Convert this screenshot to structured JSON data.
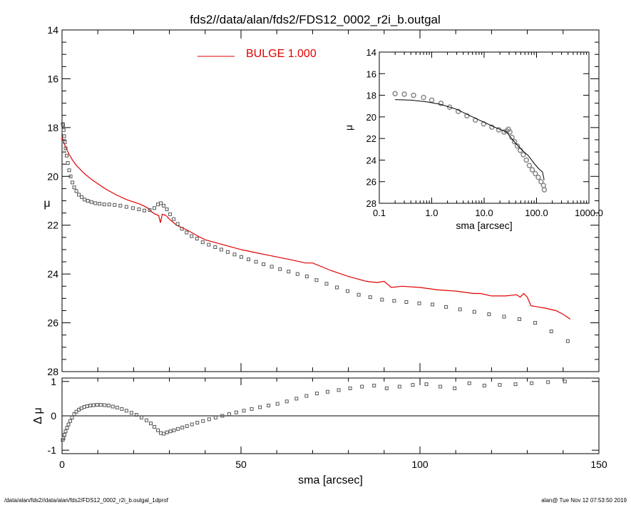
{
  "title": "fds2//data/alan/fds2/FDS12_0002_r2i_b.outgal",
  "legend": {
    "label": "BULGE  1.000",
    "color": "#e00000"
  },
  "footer": {
    "left": "/data/alan/fds2//data/alan/fds2/FDS12_0002_r2i_b.outgal_1dprof",
    "right": "alan@  Tue Nov 12 07:53:50 2019"
  },
  "colors": {
    "model": "#e00000",
    "data": "#555555",
    "inset_model": "#000000",
    "axes": "#000000"
  },
  "chart_data": [
    {
      "type": "scatter",
      "panel": "main",
      "xlabel": "",
      "ylabel": "μ",
      "xlim": [
        0,
        150
      ],
      "ylim": [
        28,
        14
      ],
      "y_inverted": true,
      "y_ticks": [
        "14",
        "16",
        "18",
        "20",
        "22",
        "24",
        "26",
        "28"
      ],
      "series": [
        {
          "name": "BULGE  1.000",
          "kind": "line",
          "x": [
            0,
            1,
            2,
            3,
            4,
            5,
            6,
            8,
            10,
            12,
            15,
            18,
            20,
            22,
            24,
            25,
            26,
            27,
            27.5,
            28,
            29,
            30,
            32,
            35,
            38,
            40,
            45,
            50,
            55,
            60,
            65,
            68,
            70,
            75,
            80,
            85,
            88,
            90,
            92,
            95,
            100,
            105,
            110,
            115,
            117,
            120,
            124,
            127,
            128,
            129,
            130,
            131,
            133,
            135,
            138,
            140,
            142
          ],
          "y": [
            18.4,
            18.8,
            19.1,
            19.35,
            19.55,
            19.7,
            19.85,
            20.1,
            20.3,
            20.5,
            20.75,
            20.95,
            21.05,
            21.15,
            21.3,
            21.45,
            21.55,
            21.6,
            21.9,
            21.55,
            21.6,
            21.75,
            22.0,
            22.2,
            22.45,
            22.6,
            22.8,
            23.0,
            23.15,
            23.3,
            23.45,
            23.55,
            23.55,
            23.85,
            24.1,
            24.3,
            24.35,
            24.3,
            24.55,
            24.5,
            24.55,
            24.65,
            24.7,
            24.8,
            24.8,
            24.9,
            24.9,
            24.85,
            24.95,
            24.8,
            24.95,
            25.3,
            25.35,
            25.4,
            25.5,
            25.65,
            25.85
          ]
        },
        {
          "name": "",
          "kind": "markers",
          "x": [
            0.2,
            0.3,
            0.45,
            0.6,
            0.8,
            1.0,
            1.3,
            1.6,
            2.0,
            2.4,
            2.9,
            3.4,
            4.0,
            4.7,
            5.5,
            6.3,
            7.2,
            8.2,
            9.3,
            10.5,
            11.8,
            13.2,
            14.7,
            16.3,
            18.0,
            19.8,
            21.5,
            23.0,
            24.5,
            25.8,
            26.8,
            27.6,
            28.4,
            29.3,
            30.2,
            31.2,
            32.3,
            33.5,
            34.8,
            36.2,
            37.7,
            39.3,
            41.0,
            42.8,
            44.5,
            46.3,
            48.2,
            50.1,
            52.1,
            54.2,
            56.3,
            58.6,
            60.9,
            63.3,
            65.8,
            68.4,
            71.1,
            73.9,
            76.8,
            79.8,
            82.9,
            86.1,
            89.4,
            92.8,
            96.2,
            99.8,
            103.5,
            107.3,
            111.2,
            115.2,
            119.3,
            123.5,
            127.8,
            132.2,
            136.7,
            141.3
          ],
          "y": [
            17.85,
            17.9,
            18.1,
            18.35,
            18.6,
            18.85,
            19.15,
            19.45,
            19.75,
            20.0,
            20.25,
            20.45,
            20.6,
            20.75,
            20.85,
            20.95,
            21.0,
            21.05,
            21.1,
            21.12,
            21.15,
            21.15,
            21.17,
            21.2,
            21.25,
            21.3,
            21.35,
            21.4,
            21.38,
            21.3,
            21.15,
            21.1,
            21.2,
            21.35,
            21.55,
            21.75,
            21.95,
            22.15,
            22.3,
            22.45,
            22.55,
            22.7,
            22.8,
            22.9,
            23.0,
            23.1,
            23.2,
            23.3,
            23.4,
            23.5,
            23.6,
            23.7,
            23.8,
            23.9,
            24.0,
            24.1,
            24.25,
            24.4,
            24.55,
            24.7,
            24.85,
            24.95,
            25.05,
            25.1,
            25.15,
            25.2,
            25.25,
            25.35,
            25.45,
            25.55,
            25.65,
            25.75,
            25.85,
            26.0,
            26.35,
            26.75
          ]
        }
      ]
    },
    {
      "type": "scatter",
      "panel": "residual",
      "xlabel": "sma [arcsec]",
      "ylabel": "Δ μ",
      "xlim": [
        0,
        150
      ],
      "ylim": [
        -1.1,
        1.1
      ],
      "x_ticks": [
        "0",
        "50",
        "100",
        "150"
      ],
      "y_ticks": [
        "1",
        "0",
        "-1"
      ],
      "zero_line": true,
      "series": [
        {
          "name": "",
          "kind": "markers",
          "x": [
            0.2,
            0.4,
            0.7,
            1.0,
            1.4,
            1.8,
            2.3,
            2.8,
            3.4,
            4.0,
            4.7,
            5.4,
            6.2,
            7.0,
            7.9,
            8.8,
            9.8,
            10.8,
            11.9,
            13.0,
            14.2,
            15.4,
            16.7,
            18.0,
            19.4,
            20.8,
            22.2,
            23.6,
            24.8,
            25.8,
            26.8,
            27.6,
            28.4,
            29.3,
            30.3,
            31.3,
            32.4,
            33.6,
            34.9,
            36.3,
            37.8,
            39.4,
            41.1,
            42.9,
            44.8,
            46.7,
            48.7,
            50.8,
            53.0,
            55.3,
            57.7,
            60.2,
            62.8,
            65.5,
            68.3,
            71.2,
            74.2,
            77.3,
            80.5,
            83.8,
            87.2,
            90.7,
            94.3,
            98.0,
            101.8,
            105.7,
            109.7,
            113.8,
            118.0,
            122.3,
            126.7,
            131.2,
            135.8,
            140.5
          ],
          "y": [
            -0.7,
            -0.65,
            -0.55,
            -0.45,
            -0.35,
            -0.25,
            -0.15,
            -0.05,
            0.05,
            0.12,
            0.18,
            0.22,
            0.26,
            0.28,
            0.3,
            0.31,
            0.32,
            0.32,
            0.31,
            0.3,
            0.27,
            0.24,
            0.2,
            0.15,
            0.09,
            0.03,
            -0.05,
            -0.13,
            -0.22,
            -0.32,
            -0.42,
            -0.5,
            -0.52,
            -0.48,
            -0.45,
            -0.42,
            -0.38,
            -0.34,
            -0.3,
            -0.25,
            -0.2,
            -0.15,
            -0.1,
            -0.05,
            0.0,
            0.05,
            0.1,
            0.15,
            0.2,
            0.25,
            0.3,
            0.35,
            0.42,
            0.5,
            0.58,
            0.65,
            0.7,
            0.75,
            0.8,
            0.85,
            0.88,
            0.8,
            0.85,
            0.9,
            0.92,
            0.85,
            0.8,
            0.95,
            0.88,
            0.9,
            0.92,
            0.95,
            0.98,
            1.0
          ]
        }
      ]
    },
    {
      "type": "scatter",
      "panel": "inset",
      "xlabel": "sma [arcsec]",
      "ylabel": "μ",
      "x_scale": "log",
      "xlim": [
        0.1,
        1000
      ],
      "ylim": [
        28,
        14
      ],
      "y_inverted": true,
      "x_ticks": [
        "0.1",
        "1.0",
        "10.0",
        "100.0",
        "1000.0"
      ],
      "y_ticks": [
        "14",
        "16",
        "18",
        "20",
        "22",
        "24",
        "26",
        "28"
      ],
      "series": [
        {
          "name": "",
          "kind": "line",
          "x": [
            0.2,
            0.4,
            0.8,
            1.5,
            3,
            6,
            10,
            15,
            20,
            27,
            32,
            40,
            55,
            70,
            90,
            110,
            130,
            140
          ],
          "y": [
            18.4,
            18.45,
            18.6,
            18.85,
            19.3,
            20.0,
            20.5,
            20.9,
            21.15,
            21.4,
            21.9,
            22.45,
            23.15,
            23.6,
            24.3,
            24.8,
            25.1,
            25.85
          ]
        },
        {
          "name": "",
          "kind": "markers",
          "x": [
            0.2,
            0.3,
            0.45,
            0.7,
            1.0,
            1.5,
            2.2,
            3.2,
            4.7,
            6.8,
            9.8,
            14,
            19,
            24,
            27,
            29,
            31,
            34,
            38,
            43,
            49,
            56,
            64,
            73,
            83,
            95,
            108,
            122,
            136,
            141
          ],
          "y": [
            17.85,
            17.9,
            18.0,
            18.2,
            18.45,
            18.75,
            19.1,
            19.5,
            19.9,
            20.3,
            20.65,
            20.95,
            21.2,
            21.4,
            21.3,
            21.15,
            21.4,
            21.9,
            22.3,
            22.7,
            23.1,
            23.5,
            24.0,
            24.5,
            24.9,
            25.25,
            25.6,
            26.0,
            26.35,
            26.75
          ]
        }
      ]
    }
  ]
}
